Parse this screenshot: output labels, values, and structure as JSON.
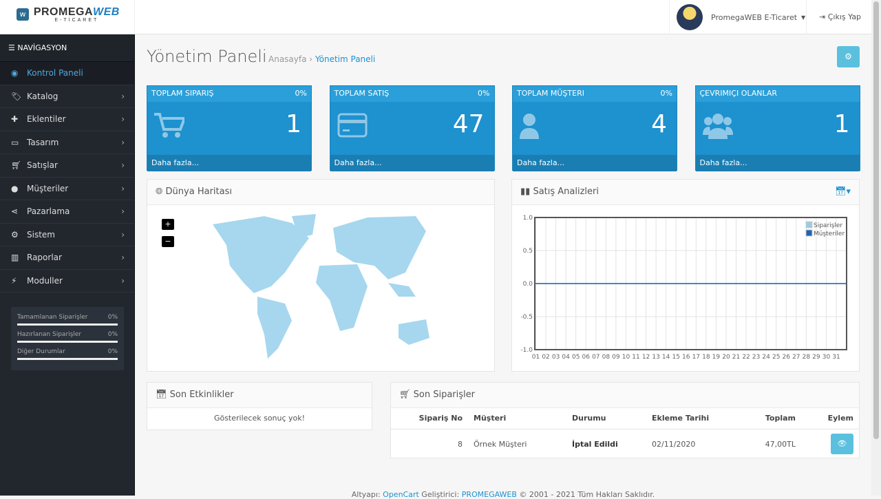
{
  "header": {
    "logo_main": "PROMEGA",
    "logo_accent": "WEB",
    "logo_sub": "E-TİCARET",
    "user_name": "PromegaWEB E-Ticaret",
    "logout": "Çıkış Yap"
  },
  "sidebar": {
    "heading": "NAVİGASYON",
    "items": [
      {
        "label": "Kontrol Paneli",
        "icon": "dashboard-icon",
        "active": true
      },
      {
        "label": "Katalog",
        "icon": "tags-icon"
      },
      {
        "label": "Eklentiler",
        "icon": "puzzle-icon"
      },
      {
        "label": "Tasarım",
        "icon": "monitor-icon"
      },
      {
        "label": "Satışlar",
        "icon": "cart-icon"
      },
      {
        "label": "Müşteriler",
        "icon": "user-icon"
      },
      {
        "label": "Pazarlama",
        "icon": "share-icon"
      },
      {
        "label": "Sistem",
        "icon": "gear-icon"
      },
      {
        "label": "Raporlar",
        "icon": "bar-chart-icon"
      },
      {
        "label": "Moduller",
        "icon": "plug-icon"
      }
    ],
    "progress": [
      {
        "label": "Tamamlanan Siparişler",
        "value": "0%"
      },
      {
        "label": "Hazırlanan Siparişler",
        "value": "0%"
      },
      {
        "label": "Diğer Durumlar",
        "value": "0%"
      }
    ]
  },
  "main": {
    "title": "Yönetim Paneli",
    "breadcrumb": [
      "Anasayfa",
      "Yönetim Paneli"
    ],
    "tiles": [
      {
        "title": "Toplam Sipariş",
        "pct": "0%",
        "value": "1",
        "more": "Daha fazla...",
        "icon": "cart-icon"
      },
      {
        "title": "Toplam Satış",
        "pct": "0%",
        "value": "47",
        "more": "Daha fazla...",
        "icon": "credit-card-icon"
      },
      {
        "title": "Toplam Müşteri",
        "pct": "0%",
        "value": "4",
        "more": "Daha fazla...",
        "icon": "user-icon"
      },
      {
        "title": "Çevrimiçi Olanlar",
        "pct": "",
        "value": "1",
        "more": "Daha fazla...",
        "icon": "users-icon"
      }
    ],
    "map_title": "Dünya Haritası",
    "map_zoom_in": "+",
    "map_zoom_out": "−",
    "analytics_title": "Satış Analizleri",
    "activity_title": "Son Etkinlikler",
    "activity_empty": "Gösterilecek sonuç yok!",
    "orders_title": "Son Siparişler",
    "orders_columns": [
      "Sipariş No",
      "Müşteri",
      "Durumu",
      "Ekleme Tarihi",
      "Toplam",
      "Eylem"
    ],
    "orders": [
      {
        "id": "8",
        "customer": "Örnek Müşteri",
        "status": "İptal Edildi",
        "date": "02/11/2020",
        "total": "47,00TL"
      }
    ]
  },
  "footer": {
    "pre": "Altyapı: ",
    "opencart": "OpenCart",
    "mid": " Geliştirici: ",
    "dev": "PROMEGAWEB",
    "post": " © 2001 - 2021 Tüm Hakları Saklıdır."
  },
  "chart_data": {
    "type": "line",
    "x": [
      "01",
      "02",
      "03",
      "04",
      "05",
      "06",
      "07",
      "08",
      "09",
      "10",
      "11",
      "12",
      "13",
      "14",
      "15",
      "16",
      "17",
      "18",
      "19",
      "20",
      "21",
      "22",
      "23",
      "24",
      "25",
      "26",
      "27",
      "28",
      "29",
      "30",
      "31"
    ],
    "series": [
      {
        "name": "Siparişler",
        "color": "#9ecae1",
        "values": [
          0,
          0,
          0,
          0,
          0,
          0,
          0,
          0,
          0,
          0,
          0,
          0,
          0,
          0,
          0,
          0,
          0,
          0,
          0,
          0,
          0,
          0,
          0,
          0,
          0,
          0,
          0,
          0,
          0,
          0,
          0
        ]
      },
      {
        "name": "Müşteriler",
        "color": "#1f65b5",
        "values": [
          0,
          0,
          0,
          0,
          0,
          0,
          0,
          0,
          0,
          0,
          0,
          0,
          0,
          0,
          0,
          0,
          0,
          0,
          0,
          0,
          0,
          0,
          0,
          0,
          0,
          0,
          0,
          0,
          0,
          0,
          0
        ]
      }
    ],
    "ylim": [
      -1,
      1
    ],
    "yticks": [
      "1.0",
      "0.5",
      "0.0",
      "-0.5",
      "-1.0"
    ],
    "grid": true,
    "legend": "top-right"
  }
}
